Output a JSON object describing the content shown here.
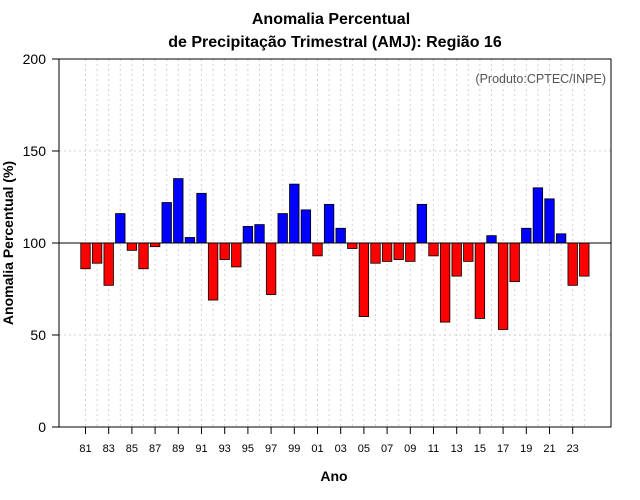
{
  "chart_data": {
    "type": "bar",
    "title_line1": "Anomalia Percentual",
    "title_line2": "de Precipitação Trimestral (AMJ): Região 16",
    "xlabel": "Ano",
    "ylabel": "Anomalia Percentual (%)",
    "credit": "(Produto:CPTEC/INPE)",
    "baseline": 100,
    "ylim": [
      0,
      200
    ],
    "yticks": [
      0,
      50,
      100,
      150,
      200
    ],
    "ytick_labels": [
      "0",
      "50",
      "100",
      "150",
      "200"
    ],
    "grid": true,
    "colors": {
      "above": "#0000ff",
      "below": "#ff0000",
      "outline": "#000000",
      "grid": "#d3d3d3"
    },
    "categories": [
      "81",
      "82",
      "83",
      "84",
      "85",
      "86",
      "87",
      "88",
      "89",
      "90",
      "91",
      "92",
      "93",
      "94",
      "95",
      "96",
      "97",
      "98",
      "99",
      "00",
      "01",
      "02",
      "03",
      "04",
      "05",
      "06",
      "07",
      "08",
      "09",
      "10",
      "11",
      "12",
      "13",
      "14",
      "15",
      "16",
      "17",
      "18",
      "19",
      "20",
      "21",
      "22",
      "23",
      "24"
    ],
    "xtick_labels": [
      "81",
      "83",
      "85",
      "87",
      "89",
      "91",
      "93",
      "95",
      "97",
      "99",
      "01",
      "03",
      "05",
      "07",
      "09",
      "11",
      "13",
      "15",
      "17",
      "19",
      "21",
      "23"
    ],
    "values": [
      86,
      89,
      77,
      116,
      96,
      86,
      98,
      122,
      135,
      103,
      127,
      69,
      91,
      87,
      109,
      110,
      72,
      116,
      132,
      118,
      93,
      121,
      108,
      97,
      60,
      89,
      90,
      91,
      90,
      121,
      93,
      57,
      82,
      90,
      59,
      104,
      53,
      79,
      108,
      130,
      124,
      105,
      77,
      82
    ]
  }
}
